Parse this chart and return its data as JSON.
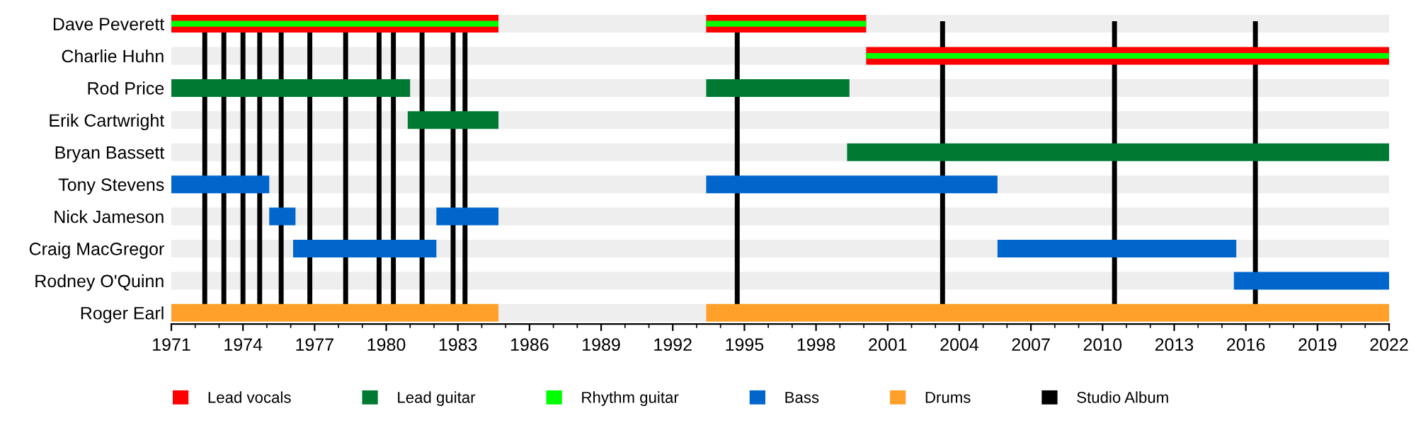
{
  "chart_data": {
    "type": "bar",
    "orientation": "horizontal",
    "categories": [
      "Dave Peverett",
      "Charlie Huhn",
      "Rod Price",
      "Erik Cartwright",
      "Bryan Bassett",
      "Tony Stevens",
      "Nick Jameson",
      "Craig MacGregor",
      "Rodney O'Quinn",
      "Roger Earl"
    ],
    "series": [
      {
        "name": "Lead vocals",
        "color": "#ff0000",
        "base": [
          1971,
          2000.1,
          null,
          null,
          null,
          null,
          null,
          null,
          null,
          null
        ],
        "values": [
          13.7,
          21.9,
          null,
          null,
          null,
          null,
          null,
          null,
          null,
          null
        ]
      },
      {
        "color": "#ff0000",
        "base": [
          1993.4,
          null,
          null,
          null,
          null,
          null,
          null,
          null,
          null,
          null
        ],
        "values": [
          6.7,
          null,
          null,
          null,
          null,
          null,
          null,
          null,
          null,
          null
        ]
      },
      {
        "name": "Lead guitar",
        "color": "#007a33",
        "base": [
          null,
          null,
          1971,
          1980.9,
          1999.3,
          null,
          null,
          null,
          null,
          null
        ],
        "values": [
          null,
          null,
          10.0,
          3.8,
          22.7,
          null,
          null,
          null,
          null,
          null
        ]
      },
      {
        "color": "#007a33",
        "base": [
          null,
          null,
          1993.4,
          null,
          null,
          null,
          null,
          null,
          null,
          null
        ],
        "values": [
          null,
          null,
          6.0,
          null,
          null,
          null,
          null,
          null,
          null,
          null
        ]
      },
      {
        "name": "Rhythm guitar",
        "color": "#00ff00",
        "base": [
          1971,
          2000.1,
          null,
          null,
          null,
          null,
          null,
          null,
          null,
          null
        ],
        "values": [
          13.7,
          21.9,
          null,
          null,
          null,
          null,
          null,
          null,
          null,
          null
        ]
      },
      {
        "color": "#00ff00",
        "base": [
          1993.4,
          null,
          null,
          null,
          null,
          null,
          null,
          null,
          null,
          null
        ],
        "values": [
          6.7,
          null,
          null,
          null,
          null,
          null,
          null,
          null,
          null,
          null
        ]
      },
      {
        "name": "Bass",
        "color": "#0066cc",
        "base": [
          null,
          null,
          null,
          null,
          null,
          1971,
          1975.1,
          1976.1,
          2015.5,
          null
        ],
        "values": [
          null,
          null,
          null,
          null,
          null,
          4.1,
          1.1,
          6.0,
          6.5,
          null
        ]
      },
      {
        "color": "#0066cc",
        "base": [
          null,
          null,
          null,
          null,
          null,
          1993.4,
          1982.1,
          2005.6,
          null,
          null
        ],
        "values": [
          null,
          null,
          null,
          null,
          null,
          12.2,
          2.6,
          10.0,
          null,
          null
        ]
      },
      {
        "name": "Drums",
        "color": "#ffa02a",
        "base": [
          null,
          null,
          null,
          null,
          null,
          null,
          null,
          null,
          null,
          1971
        ],
        "values": [
          null,
          null,
          null,
          null,
          null,
          null,
          null,
          null,
          null,
          13.7
        ]
      },
      {
        "color": "#ffa02a",
        "base": [
          null,
          null,
          null,
          null,
          null,
          null,
          null,
          null,
          null,
          1993.4
        ],
        "values": [
          null,
          null,
          null,
          null,
          null,
          null,
          null,
          null,
          null,
          28.6
        ]
      }
    ],
    "ref_lines": [
      {
        "axis": "x",
        "value": 1972.4,
        "label": "Studio Album",
        "color": "#000000"
      },
      {
        "axis": "x",
        "value": 1973.2,
        "color": "#000000"
      },
      {
        "axis": "x",
        "value": 1974.0,
        "color": "#000000"
      },
      {
        "axis": "x",
        "value": 1974.7,
        "color": "#000000"
      },
      {
        "axis": "x",
        "value": 1975.6,
        "color": "#000000"
      },
      {
        "axis": "x",
        "value": 1976.8,
        "color": "#000000"
      },
      {
        "axis": "x",
        "value": 1978.3,
        "color": "#000000"
      },
      {
        "axis": "x",
        "value": 1979.7,
        "color": "#000000"
      },
      {
        "axis": "x",
        "value": 1980.3,
        "color": "#000000"
      },
      {
        "axis": "x",
        "value": 1981.5,
        "color": "#000000"
      },
      {
        "axis": "x",
        "value": 1982.8,
        "color": "#000000"
      },
      {
        "axis": "x",
        "value": 1983.3,
        "color": "#000000"
      },
      {
        "axis": "x",
        "value": 1994.7,
        "color": "#000000"
      },
      {
        "axis": "x",
        "value": 2003.3,
        "color": "#000000"
      },
      {
        "axis": "x",
        "value": 2010.5,
        "color": "#000000"
      },
      {
        "axis": "x",
        "value": 2016.4,
        "color": "#000000"
      }
    ],
    "xlim": [
      1971,
      2022
    ],
    "xticks": [
      1971,
      1974,
      1977,
      1980,
      1983,
      1986,
      1989,
      1992,
      1995,
      1998,
      2001,
      2004,
      2007,
      2010,
      2013,
      2016,
      2019,
      2022
    ],
    "grid": false,
    "legend": "bottom"
  }
}
